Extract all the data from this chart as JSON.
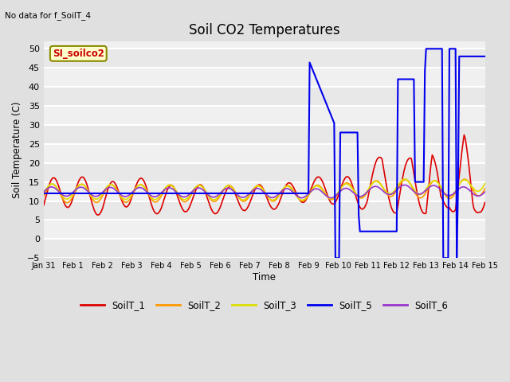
{
  "title": "Soil CO2 Temperatures",
  "ylabel": "Soil Temperature (C)",
  "xlabel": "Time",
  "top_left_note": "No data for f_SoilT_4",
  "annotation_label": "SI_soilco2",
  "ylim": [
    -5,
    52
  ],
  "yticks": [
    -5,
    0,
    5,
    10,
    15,
    20,
    25,
    30,
    35,
    40,
    45,
    50
  ],
  "fig_bg_color": "#e0e0e0",
  "plot_bg_color": "#f0f0f0",
  "grid_color": "#ffffff",
  "series": {
    "SoilT_1": {
      "color": "#dd0000",
      "lw": 1.2
    },
    "SoilT_2": {
      "color": "#ff9900",
      "lw": 1.2
    },
    "SoilT_3": {
      "color": "#dddd00",
      "lw": 1.2
    },
    "SoilT_5": {
      "color": "#0000ee",
      "lw": 1.5
    },
    "SoilT_6": {
      "color": "#9933cc",
      "lw": 1.2
    }
  },
  "x_tick_labels": [
    "Jan 31",
    "Feb 1",
    "Feb 2",
    "Feb 3",
    "Feb 4",
    "Feb 5",
    "Feb 6",
    "Feb 7",
    "Feb 8",
    "Feb 9",
    "Feb 10",
    "Feb 11",
    "Feb 12",
    "Feb 13",
    "Feb 14",
    "Feb 15"
  ]
}
